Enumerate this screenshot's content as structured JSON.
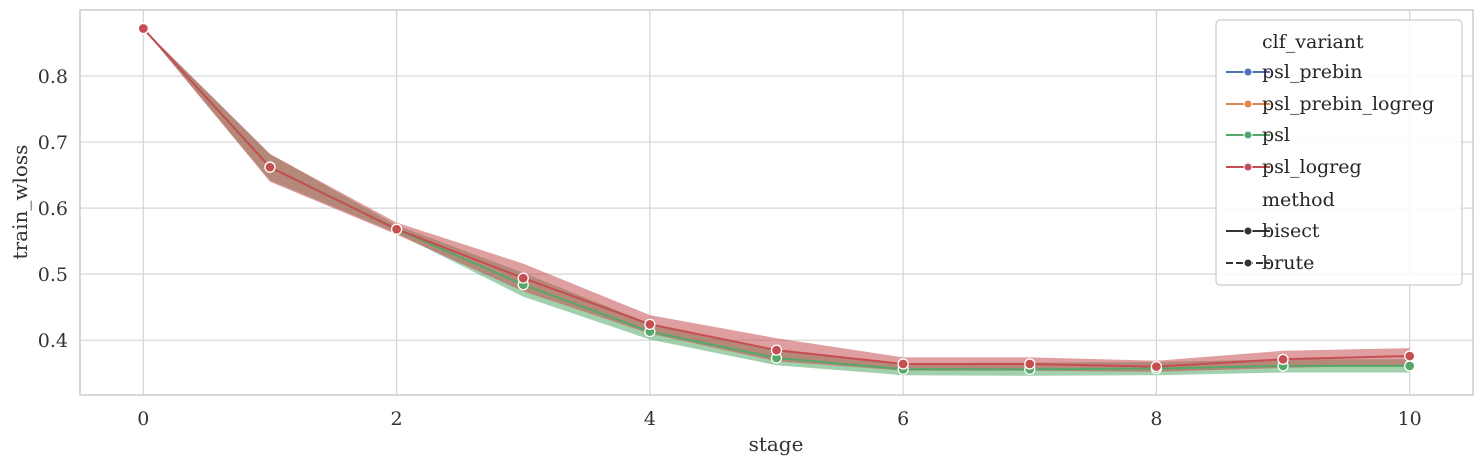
{
  "chart_data": {
    "type": "line",
    "xlabel": "stage",
    "ylabel": "train_wloss",
    "xlim": [
      -0.5,
      10.5
    ],
    "ylim": [
      0.317,
      0.9
    ],
    "xticks": [
      0,
      2,
      4,
      6,
      8,
      10
    ],
    "xtick_labels": [
      "0",
      "2",
      "4",
      "6",
      "8",
      "10"
    ],
    "yticks": [
      0.4,
      0.5,
      0.6,
      0.7,
      0.8
    ],
    "ytick_labels": [
      "0.4",
      "0.5",
      "0.6",
      "0.7",
      "0.8"
    ],
    "grid": true,
    "legend_position": "top-right",
    "legend": {
      "hue_title": "clf_variant",
      "hue_entries": [
        {
          "label": "psl_prebin",
          "color": "#4C72B0"
        },
        {
          "label": "psl_prebin_logreg",
          "color": "#DD8452"
        },
        {
          "label": "psl",
          "color": "#55A868"
        },
        {
          "label": "psl_logreg",
          "color": "#C44E52"
        }
      ],
      "style_title": "method",
      "style_entries": [
        {
          "label": "bisect",
          "dash": "solid"
        },
        {
          "label": "brute",
          "dash": "dashed"
        }
      ]
    },
    "series": [
      {
        "name": "psl",
        "color": "#55A868",
        "x": [
          0,
          1,
          2,
          3,
          4,
          5,
          6,
          7,
          8,
          9,
          10
        ],
        "values": [
          0.872,
          0.662,
          0.568,
          0.484,
          0.413,
          0.373,
          0.356,
          0.356,
          0.357,
          0.361,
          0.361
        ],
        "ci_low": [
          0.872,
          0.642,
          0.562,
          0.466,
          0.401,
          0.362,
          0.347,
          0.346,
          0.347,
          0.351,
          0.351
        ],
        "ci_high": [
          0.872,
          0.682,
          0.574,
          0.502,
          0.425,
          0.384,
          0.365,
          0.366,
          0.367,
          0.371,
          0.371
        ]
      },
      {
        "name": "psl_logreg",
        "color": "#C44E52",
        "x": [
          0,
          1,
          2,
          3,
          4,
          5,
          6,
          7,
          8,
          9,
          10
        ],
        "values": [
          0.872,
          0.662,
          0.568,
          0.494,
          0.424,
          0.385,
          0.364,
          0.364,
          0.36,
          0.371,
          0.376
        ],
        "ci_low": [
          0.872,
          0.64,
          0.56,
          0.474,
          0.41,
          0.368,
          0.354,
          0.354,
          0.352,
          0.358,
          0.362
        ],
        "ci_high": [
          0.872,
          0.682,
          0.578,
          0.516,
          0.438,
          0.403,
          0.374,
          0.374,
          0.369,
          0.384,
          0.388
        ]
      }
    ]
  }
}
